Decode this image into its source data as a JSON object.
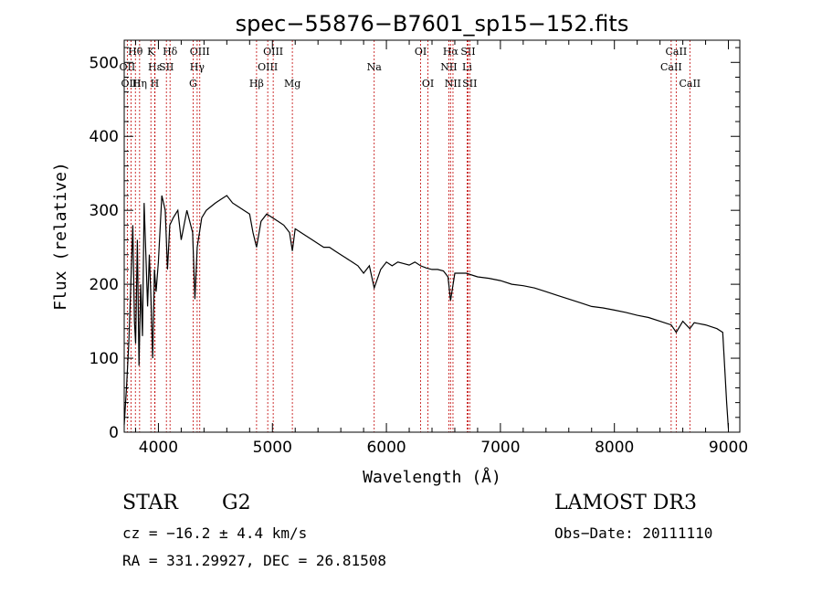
{
  "chart_data": {
    "type": "line",
    "title": "spec−55876−B7601_sp15−152.fits",
    "xlabel": "Wavelength (Å)",
    "ylabel": "Flux (relative)",
    "xlim": [
      3700,
      9100
    ],
    "ylim": [
      0,
      530
    ],
    "xticks": [
      4000,
      5000,
      6000,
      7000,
      8000,
      9000
    ],
    "yticks": [
      0,
      100,
      200,
      300,
      400,
      500
    ],
    "series": [
      {
        "name": "spectrum",
        "x": [
          3700,
          3720,
          3740,
          3760,
          3775,
          3790,
          3800,
          3815,
          3830,
          3845,
          3860,
          3875,
          3890,
          3905,
          3920,
          3935,
          3950,
          3965,
          3980,
          4000,
          4030,
          4060,
          4080,
          4100,
          4130,
          4170,
          4200,
          4250,
          4300,
          4320,
          4340,
          4380,
          4420,
          4460,
          4500,
          4550,
          4600,
          4650,
          4700,
          4750,
          4800,
          4830,
          4861,
          4900,
          4950,
          5000,
          5050,
          5100,
          5150,
          5175,
          5200,
          5250,
          5300,
          5350,
          5400,
          5450,
          5500,
          5550,
          5600,
          5650,
          5700,
          5750,
          5800,
          5850,
          5893,
          5950,
          6000,
          6050,
          6100,
          6150,
          6200,
          6250,
          6300,
          6350,
          6400,
          6450,
          6500,
          6540,
          6563,
          6600,
          6700,
          6800,
          6900,
          7000,
          7100,
          7200,
          7300,
          7400,
          7500,
          7600,
          7700,
          7800,
          7900,
          8000,
          8100,
          8200,
          8300,
          8400,
          8498,
          8542,
          8600,
          8662,
          8700,
          8800,
          8900,
          8950,
          8970,
          8985,
          9000
        ],
        "y": [
          10,
          60,
          120,
          210,
          280,
          150,
          120,
          260,
          90,
          200,
          130,
          310,
          240,
          170,
          240,
          180,
          100,
          220,
          190,
          230,
          320,
          300,
          220,
          280,
          290,
          300,
          260,
          300,
          270,
          180,
          250,
          290,
          300,
          305,
          310,
          315,
          320,
          310,
          305,
          300,
          295,
          270,
          250,
          285,
          295,
          290,
          285,
          280,
          270,
          245,
          275,
          270,
          265,
          260,
          255,
          250,
          250,
          245,
          240,
          235,
          230,
          225,
          215,
          225,
          195,
          220,
          230,
          225,
          230,
          228,
          226,
          230,
          225,
          222,
          220,
          220,
          218,
          210,
          178,
          215,
          215,
          210,
          208,
          205,
          200,
          198,
          195,
          190,
          185,
          180,
          175,
          170,
          168,
          165,
          162,
          158,
          155,
          150,
          145,
          135,
          150,
          140,
          148,
          145,
          140,
          135,
          80,
          40,
          5
        ]
      }
    ],
    "lines": [
      {
        "label": "Hθ",
        "wave": 3798,
        "row": 0
      },
      {
        "label": "OII",
        "wave": 3727,
        "row": 1
      },
      {
        "label": "OIII",
        "wave": 3760,
        "row": 2
      },
      {
        "label": "Hη",
        "wave": 3835,
        "row": 2
      },
      {
        "label": "K",
        "wave": 3934,
        "row": 0
      },
      {
        "label": "Hε",
        "wave": 3970,
        "row": 1
      },
      {
        "label": "SII",
        "wave": 4070,
        "row": 1
      },
      {
        "label": "H",
        "wave": 3968,
        "row": 2
      },
      {
        "label": "Hδ",
        "wave": 4102,
        "row": 0
      },
      {
        "label": "OIII",
        "wave": 4363,
        "row": 0
      },
      {
        "label": "Hγ",
        "wave": 4340,
        "row": 1
      },
      {
        "label": "G",
        "wave": 4304,
        "row": 2
      },
      {
        "label": "Hβ",
        "wave": 4861,
        "row": 2
      },
      {
        "label": "OIII",
        "wave": 5007,
        "row": 0
      },
      {
        "label": "OIII",
        "wave": 4959,
        "row": 1
      },
      {
        "label": "Mg",
        "wave": 5175,
        "row": 2
      },
      {
        "label": "Na",
        "wave": 5893,
        "row": 1
      },
      {
        "label": "OI",
        "wave": 6300,
        "row": 0
      },
      {
        "label": "OI",
        "wave": 6364,
        "row": 2
      },
      {
        "label": "Hα",
        "wave": 6563,
        "row": 0
      },
      {
        "label": "SII",
        "wave": 6716,
        "row": 0
      },
      {
        "label": "NII",
        "wave": 6548,
        "row": 1
      },
      {
        "label": "Li",
        "wave": 6708,
        "row": 1
      },
      {
        "label": "NII",
        "wave": 6584,
        "row": 2
      },
      {
        "label": "SII",
        "wave": 6731,
        "row": 2
      },
      {
        "label": "CaII",
        "wave": 8542,
        "row": 0
      },
      {
        "label": "CaII",
        "wave": 8498,
        "row": 1
      },
      {
        "label": "CaII",
        "wave": 8662,
        "row": 2
      }
    ]
  },
  "info": {
    "object_class": "STAR",
    "subclass": "G2",
    "survey": "LAMOST DR3",
    "redshift": "cz = −16.2 ± 4.4 km/s",
    "obs_date": "Obs−Date: 20111110",
    "coords": "RA = 331.29927, DEC =  26.81508"
  }
}
